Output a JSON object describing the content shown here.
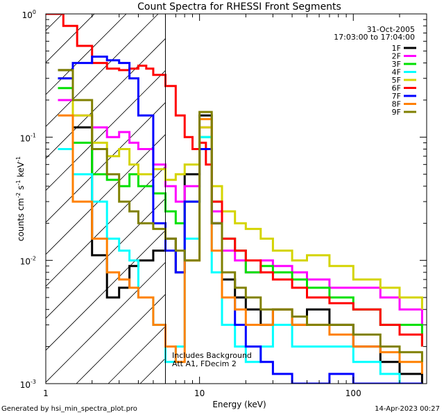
{
  "chart_data": {
    "type": "line",
    "title": "Count Spectra for RHESSI Front Segments",
    "xlabel": "Energy (keV)",
    "ylabel_parts": [
      "counts cm",
      "-2",
      " s",
      "-1",
      " keV",
      "-1"
    ],
    "x_scale": "log",
    "y_scale": "log",
    "xlim": [
      1,
      300
    ],
    "ylim": [
      0.001,
      1
    ],
    "x_tick_labels": [
      {
        "v": 1,
        "t": "1"
      },
      {
        "v": 10,
        "t": "10"
      },
      {
        "v": 100,
        "t": "100"
      }
    ],
    "y_tick_labels": [
      {
        "v": 1,
        "t": "10",
        "e": "0"
      },
      {
        "v": 0.1,
        "t": "10",
        "e": "-1"
      },
      {
        "v": 0.01,
        "t": "10",
        "e": "-2"
      },
      {
        "v": 0.001,
        "t": "10",
        "e": "-3"
      }
    ],
    "header_annotations": [
      "31-Oct-2005",
      "17:03:00 to 17:04:00"
    ],
    "plot_annotations": [
      "Includes Background",
      "Att A1, FDecim 2"
    ],
    "excluded_region_max_keV": 6,
    "legend_position": "top-right",
    "series": [
      {
        "name": "1F",
        "color": "#000000",
        "x": [
          1.2,
          1.5,
          2,
          2.5,
          3,
          3.5,
          4,
          5,
          6,
          7,
          8,
          10,
          12,
          14,
          17,
          20,
          25,
          30,
          40,
          50,
          70,
          100,
          150,
          200,
          280
        ],
        "y": [
          0.35,
          0.12,
          0.011,
          0.005,
          0.006,
          0.009,
          0.01,
          0.012,
          0.015,
          0.008,
          0.05,
          0.15,
          0.02,
          0.007,
          0.005,
          0.004,
          0.003,
          0.004,
          0.003,
          0.004,
          0.003,
          0.002,
          0.0015,
          0.0012,
          0.0009
        ]
      },
      {
        "name": "2F",
        "color": "#ff00ff",
        "x": [
          1.2,
          1.5,
          2,
          2.5,
          3,
          3.5,
          4,
          5,
          6,
          7,
          8,
          10,
          12,
          14,
          17,
          20,
          25,
          30,
          40,
          50,
          70,
          100,
          150,
          200,
          280
        ],
        "y": [
          0.2,
          0.15,
          0.12,
          0.1,
          0.11,
          0.09,
          0.08,
          0.06,
          0.04,
          0.03,
          0.04,
          0.12,
          0.025,
          0.012,
          0.01,
          0.008,
          0.01,
          0.009,
          0.008,
          0.007,
          0.006,
          0.006,
          0.005,
          0.004,
          0.003
        ]
      },
      {
        "name": "3F",
        "color": "#00e000",
        "x": [
          1.2,
          1.5,
          2,
          2.5,
          3,
          3.5,
          4,
          5,
          6,
          7,
          8,
          10,
          12,
          14,
          17,
          20,
          25,
          30,
          40,
          50,
          70,
          100,
          150,
          200,
          280
        ],
        "y": [
          0.25,
          0.09,
          0.05,
          0.045,
          0.04,
          0.05,
          0.04,
          0.035,
          0.025,
          0.02,
          0.03,
          0.1,
          0.03,
          0.015,
          0.012,
          0.008,
          0.009,
          0.008,
          0.007,
          0.006,
          0.005,
          0.004,
          0.003,
          0.003,
          0.002
        ]
      },
      {
        "name": "4F",
        "color": "#00ffff",
        "x": [
          1.2,
          1.5,
          2,
          2.5,
          3,
          3.5,
          4,
          5,
          6,
          7,
          8,
          10,
          12,
          14,
          17,
          20,
          25,
          30,
          40,
          50,
          70,
          100,
          150,
          200,
          280
        ],
        "y": [
          0.08,
          0.05,
          0.03,
          0.015,
          0.012,
          0.01,
          0.005,
          0.003,
          0.0015,
          0.002,
          0.015,
          0.1,
          0.008,
          0.003,
          0.002,
          0.0015,
          0.002,
          0.003,
          0.002,
          0.002,
          0.002,
          0.0015,
          0.0012,
          0.001,
          0.001
        ]
      },
      {
        "name": "5F",
        "color": "#d4d400",
        "x": [
          1.2,
          1.5,
          2,
          2.5,
          3,
          3.5,
          4,
          5,
          6,
          7,
          8,
          10,
          12,
          14,
          17,
          20,
          25,
          30,
          40,
          50,
          70,
          100,
          150,
          200,
          280
        ],
        "y": [
          0.3,
          0.15,
          0.09,
          0.07,
          0.08,
          0.06,
          0.05,
          0.055,
          0.045,
          0.05,
          0.06,
          0.12,
          0.04,
          0.025,
          0.02,
          0.018,
          0.015,
          0.012,
          0.01,
          0.011,
          0.009,
          0.007,
          0.006,
          0.005,
          0.004
        ]
      },
      {
        "name": "6F",
        "color": "#ff0000",
        "x": [
          1.0,
          1.3,
          1.6,
          2.0,
          2.5,
          3.0,
          3.5,
          4.0,
          4.5,
          5.0,
          6.0,
          7.0,
          8.0,
          9.0,
          10.0,
          11.0,
          12.0,
          14.0,
          17.0,
          20.0,
          25.0,
          30.0,
          40.0,
          50.0,
          70.0,
          100.0,
          150.0,
          200.0,
          280.0
        ],
        "y": [
          1.0,
          0.8,
          0.55,
          0.4,
          0.36,
          0.35,
          0.36,
          0.38,
          0.36,
          0.32,
          0.26,
          0.15,
          0.1,
          0.08,
          0.09,
          0.06,
          0.03,
          0.015,
          0.012,
          0.01,
          0.008,
          0.007,
          0.006,
          0.005,
          0.0045,
          0.004,
          0.003,
          0.0025,
          0.002
        ]
      },
      {
        "name": "7F",
        "color": "#0000ff",
        "x": [
          1.2,
          1.5,
          2,
          2.5,
          3,
          3.5,
          4,
          5,
          6,
          7,
          8,
          10,
          12,
          14,
          17,
          20,
          25,
          30,
          40,
          50,
          70,
          100,
          150,
          200,
          280
        ],
        "y": [
          0.3,
          0.4,
          0.45,
          0.42,
          0.4,
          0.3,
          0.15,
          0.02,
          0.012,
          0.008,
          0.03,
          0.08,
          0.02,
          0.005,
          0.003,
          0.002,
          0.0015,
          0.0012,
          0.001,
          0.001,
          0.0012,
          0.001,
          0.001,
          0.001,
          0.001
        ]
      },
      {
        "name": "8F",
        "color": "#ff8000",
        "x": [
          1.2,
          1.5,
          2,
          2.5,
          3,
          3.5,
          4,
          5,
          6,
          7,
          8,
          10,
          12,
          14,
          17,
          20,
          25,
          30,
          40,
          50,
          70,
          100,
          150,
          200,
          280
        ],
        "y": [
          0.15,
          0.03,
          0.015,
          0.008,
          0.007,
          0.006,
          0.005,
          0.003,
          0.002,
          0.0015,
          0.01,
          0.14,
          0.012,
          0.005,
          0.004,
          0.003,
          0.003,
          0.004,
          0.003,
          0.003,
          0.0025,
          0.002,
          0.0018,
          0.0015,
          0.0012
        ]
      },
      {
        "name": "9F",
        "color": "#808000",
        "x": [
          1.2,
          1.5,
          2,
          2.5,
          3,
          3.5,
          4,
          5,
          6,
          7,
          8,
          10,
          12,
          14,
          17,
          20,
          25,
          30,
          40,
          50,
          70,
          100,
          150,
          200,
          280
        ],
        "y": [
          0.35,
          0.2,
          0.08,
          0.05,
          0.03,
          0.025,
          0.02,
          0.018,
          0.015,
          0.012,
          0.01,
          0.16,
          0.02,
          0.008,
          0.006,
          0.005,
          0.004,
          0.004,
          0.0035,
          0.003,
          0.003,
          0.0025,
          0.002,
          0.0018,
          0.0015
        ]
      }
    ]
  },
  "footer": {
    "left": "Generated by hsi_min_spectra_plot.pro",
    "right": "14-Apr-2023 00:27"
  }
}
